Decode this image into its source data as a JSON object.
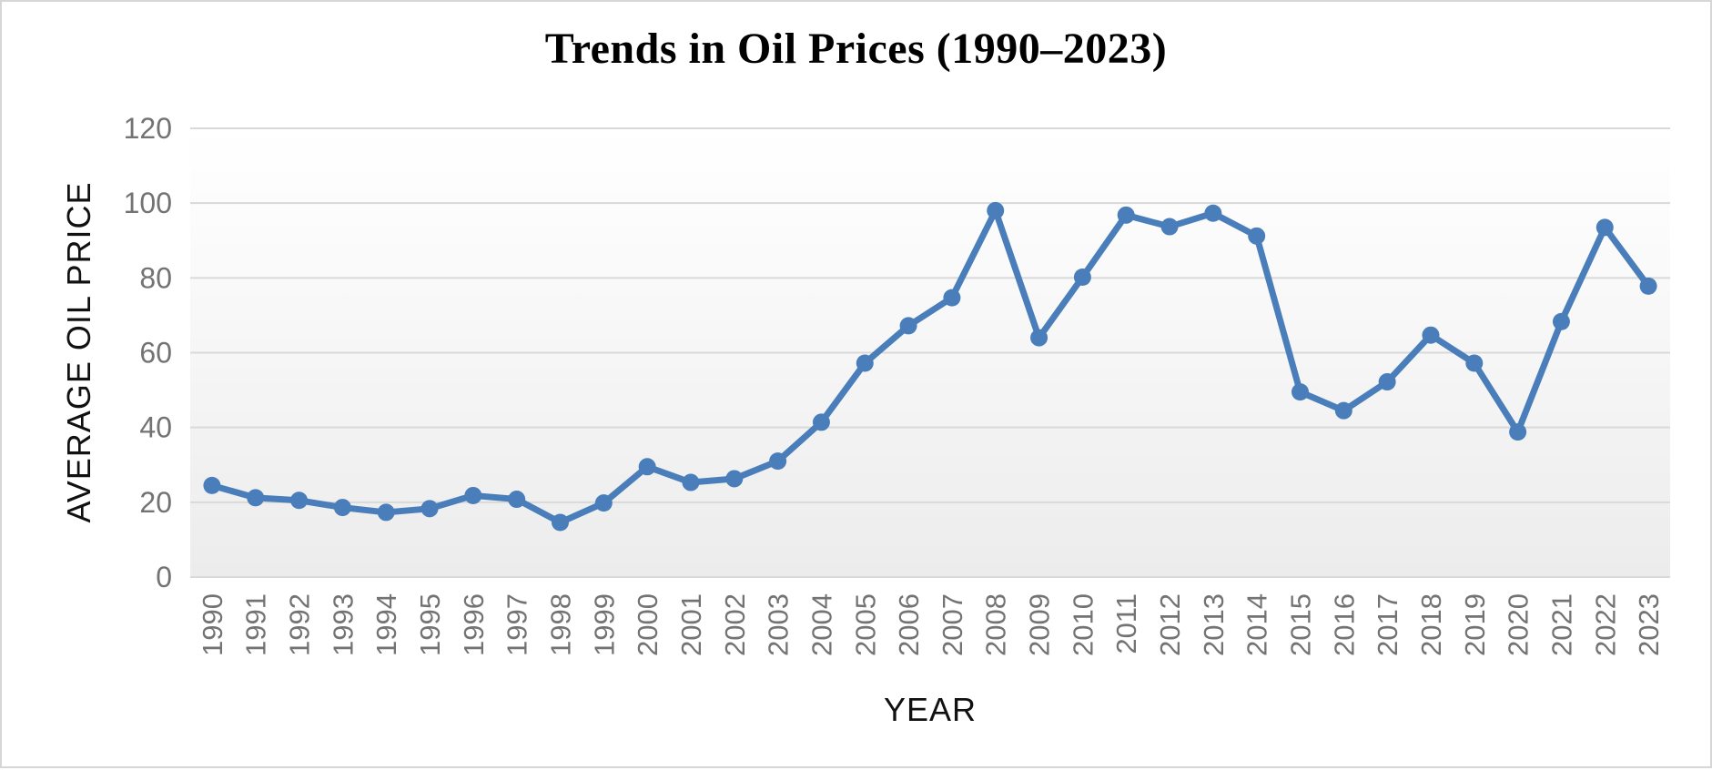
{
  "window": {
    "border_color": "#d6d6d6",
    "background": "#ffffff"
  },
  "chart_data": {
    "type": "line",
    "title": "Trends in Oil Prices (1990–2023)",
    "xlabel": "YEAR",
    "ylabel": "AVERAGE OIL PRICE",
    "categories": [
      "1990",
      "1991",
      "1992",
      "1993",
      "1994",
      "1995",
      "1996",
      "1997",
      "1998",
      "1999",
      "2000",
      "2001",
      "2002",
      "2003",
      "2004",
      "2005",
      "2006",
      "2007",
      "2008",
      "2009",
      "2010",
      "2011",
      "2012",
      "2013",
      "2014",
      "2015",
      "2016",
      "2017",
      "2018",
      "2019",
      "2020",
      "2021",
      "2022",
      "2023"
    ],
    "values": [
      24.5,
      21.2,
      20.5,
      18.6,
      17.3,
      18.3,
      21.8,
      20.8,
      14.6,
      19.8,
      29.5,
      25.3,
      26.3,
      31.0,
      41.4,
      57.2,
      67.2,
      74.7,
      98.0,
      64.0,
      80.2,
      96.8,
      93.7,
      97.3,
      91.2,
      49.5,
      44.5,
      52.2,
      64.7,
      57.2,
      38.8,
      68.3,
      93.5,
      77.8
    ],
    "ylim": [
      0,
      120
    ],
    "yticks": [
      0,
      20,
      40,
      60,
      80,
      100,
      120
    ],
    "grid": "horizontal",
    "legend": "none",
    "line_color": "#4a7ebb",
    "marker": "circle",
    "gridline_color": "#d9d9d9",
    "tick_label_color": "#737373",
    "axis_title_color": "#111111",
    "plot_bg_top": "#ffffff",
    "plot_bg_bottom": "#ececec"
  }
}
